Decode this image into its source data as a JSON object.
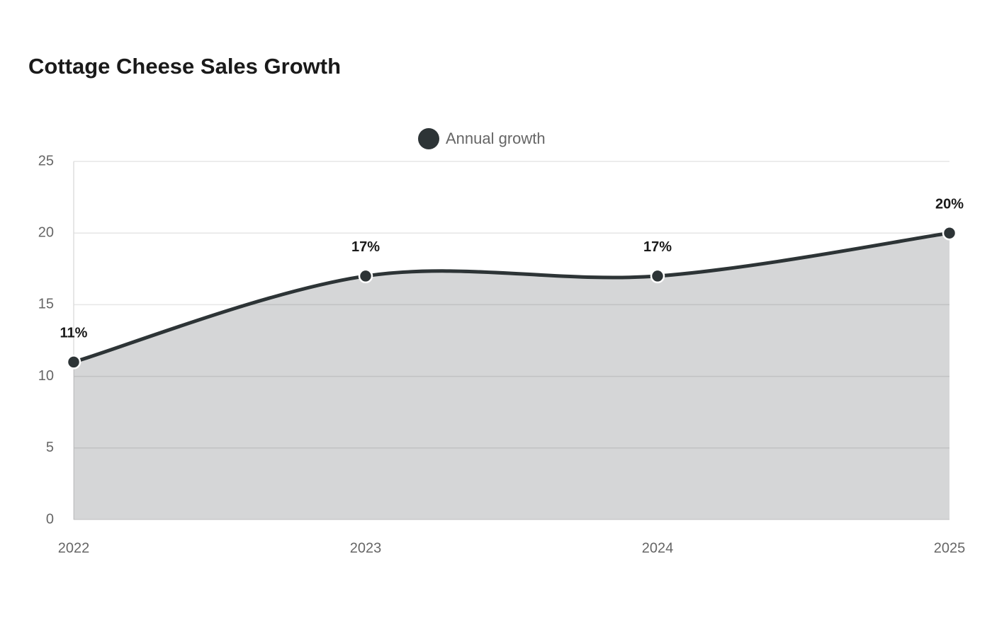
{
  "chart_data": {
    "type": "line",
    "area": true,
    "title": "Cottage Cheese Sales Growth",
    "categories": [
      "2022",
      "2023",
      "2024",
      "2025"
    ],
    "series": [
      {
        "name": "Annual growth",
        "color": "#2d3436",
        "values": [
          11,
          17,
          17,
          20
        ],
        "value_labels": [
          "11%",
          "17%",
          "17%",
          "20%"
        ]
      }
    ],
    "ylim": [
      0,
      25
    ],
    "yticks": [
      0,
      5,
      10,
      15,
      20,
      25
    ],
    "grid": true,
    "legend": "top"
  }
}
